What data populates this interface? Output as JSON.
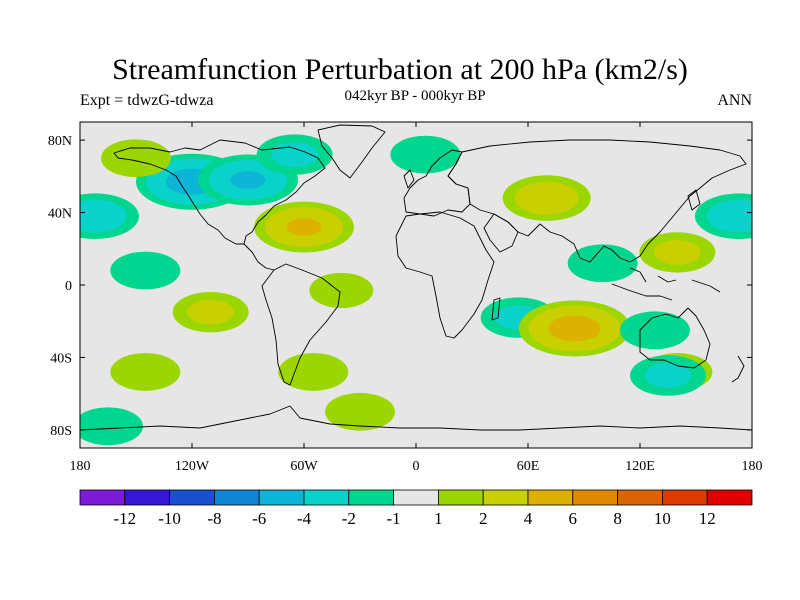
{
  "title": "Streamfunction Perturbation at 200 hPa (km2/s)",
  "experiment": "Expt = tdwzG-tdwza",
  "period": "042kyr BP - 000kyr BP",
  "season": "ANN",
  "colors": {
    "background": "#e6e6e6",
    "neg": [
      "#7d1bd9",
      "#3617d5",
      "#1a4fd0",
      "#0f86d3",
      "#0cb4d6",
      "#08d2c9",
      "#00d68f"
    ],
    "pos": [
      "#9bd600",
      "#c8d000",
      "#ddb100",
      "#de8a00",
      "#dc6400",
      "#dd3a00",
      "#e00000"
    ]
  },
  "axes": {
    "lat_ticks": [
      {
        "value": 80,
        "label": "80N"
      },
      {
        "value": 40,
        "label": "40N"
      },
      {
        "value": 0,
        "label": "0"
      },
      {
        "value": -40,
        "label": "40S"
      },
      {
        "value": -80,
        "label": "80S"
      }
    ],
    "lon_ticks": [
      {
        "value": -180,
        "label": "180"
      },
      {
        "value": -120,
        "label": "120W"
      },
      {
        "value": -60,
        "label": "60W"
      },
      {
        "value": 0,
        "label": "0"
      },
      {
        "value": 60,
        "label": "60E"
      },
      {
        "value": 120,
        "label": "120E"
      },
      {
        "value": 180,
        "label": "180"
      }
    ],
    "lon_range": [
      -180,
      180
    ],
    "lat_range": [
      -90,
      90
    ]
  },
  "colorbar": {
    "levels": [
      "-12",
      "-10",
      "-8",
      "-6",
      "-4",
      "-2",
      "-1",
      "1",
      "2",
      "4",
      "6",
      "8",
      "10",
      "12"
    ]
  },
  "chart_data": {
    "type": "heatmap",
    "title": "Streamfunction Perturbation at 200 hPa (km2/s)",
    "xlim": [
      -180,
      180
    ],
    "ylim": [
      -90,
      90
    ],
    "features": [
      {
        "lon": -120,
        "lat": 57,
        "value": -5
      },
      {
        "lon": -90,
        "lat": 58,
        "value": -4
      },
      {
        "lon": -65,
        "lat": 72,
        "value": -2
      },
      {
        "lon": -172,
        "lat": 38,
        "value": -3
      },
      {
        "lon": 173,
        "lat": 38,
        "value": -3
      },
      {
        "lon": -145,
        "lat": 8,
        "value": -1.5
      },
      {
        "lon": -60,
        "lat": 32,
        "value": 4
      },
      {
        "lon": -150,
        "lat": 70,
        "value": 1.5
      },
      {
        "lon": 5,
        "lat": 72,
        "value": -1.5
      },
      {
        "lon": 70,
        "lat": 48,
        "value": 3
      },
      {
        "lon": 140,
        "lat": 18,
        "value": 2
      },
      {
        "lon": 100,
        "lat": 12,
        "value": -1.5
      },
      {
        "lon": -110,
        "lat": -15,
        "value": 2
      },
      {
        "lon": -40,
        "lat": -3,
        "value": 1
      },
      {
        "lon": -55,
        "lat": -48,
        "value": 1.5
      },
      {
        "lon": 55,
        "lat": -18,
        "value": -2
      },
      {
        "lon": 85,
        "lat": -24,
        "value": 5
      },
      {
        "lon": 128,
        "lat": -25,
        "value": -1.5
      },
      {
        "lon": 140,
        "lat": -48,
        "value": 1.5
      },
      {
        "lon": 135,
        "lat": -50,
        "value": -2
      },
      {
        "lon": -145,
        "lat": -48,
        "value": 1.5
      },
      {
        "lon": -30,
        "lat": -70,
        "value": 1.5
      },
      {
        "lon": -165,
        "lat": -78,
        "value": -1.5
      }
    ]
  }
}
